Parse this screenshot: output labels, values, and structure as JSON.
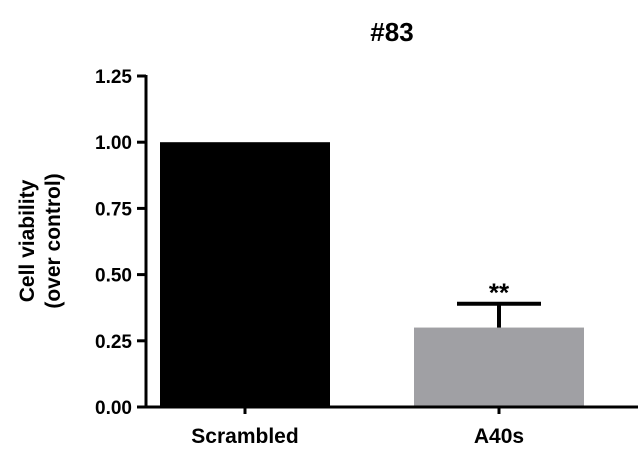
{
  "chart_data": {
    "type": "bar",
    "title": "#83",
    "ylabel_line1": "Cell viability",
    "ylabel_line2": "(over control)",
    "xlabel": "",
    "ylim": [
      0,
      1.25
    ],
    "yticks": [
      {
        "value": 0,
        "label": "0.00"
      },
      {
        "value": 0.25,
        "label": "0.25"
      },
      {
        "value": 0.5,
        "label": "0.50"
      },
      {
        "value": 0.75,
        "label": "0.75"
      },
      {
        "value": 1.0,
        "label": "1.00"
      },
      {
        "value": 1.25,
        "label": "1.25"
      }
    ],
    "categories": [
      "Scrambled",
      "A40s"
    ],
    "values": [
      1.0,
      0.3
    ],
    "errors": [
      0.0,
      0.09
    ],
    "bar_colors": [
      "#000000",
      "#a0a0a4"
    ],
    "annotations": [
      "",
      "**"
    ],
    "grid": false,
    "legend": "none"
  }
}
